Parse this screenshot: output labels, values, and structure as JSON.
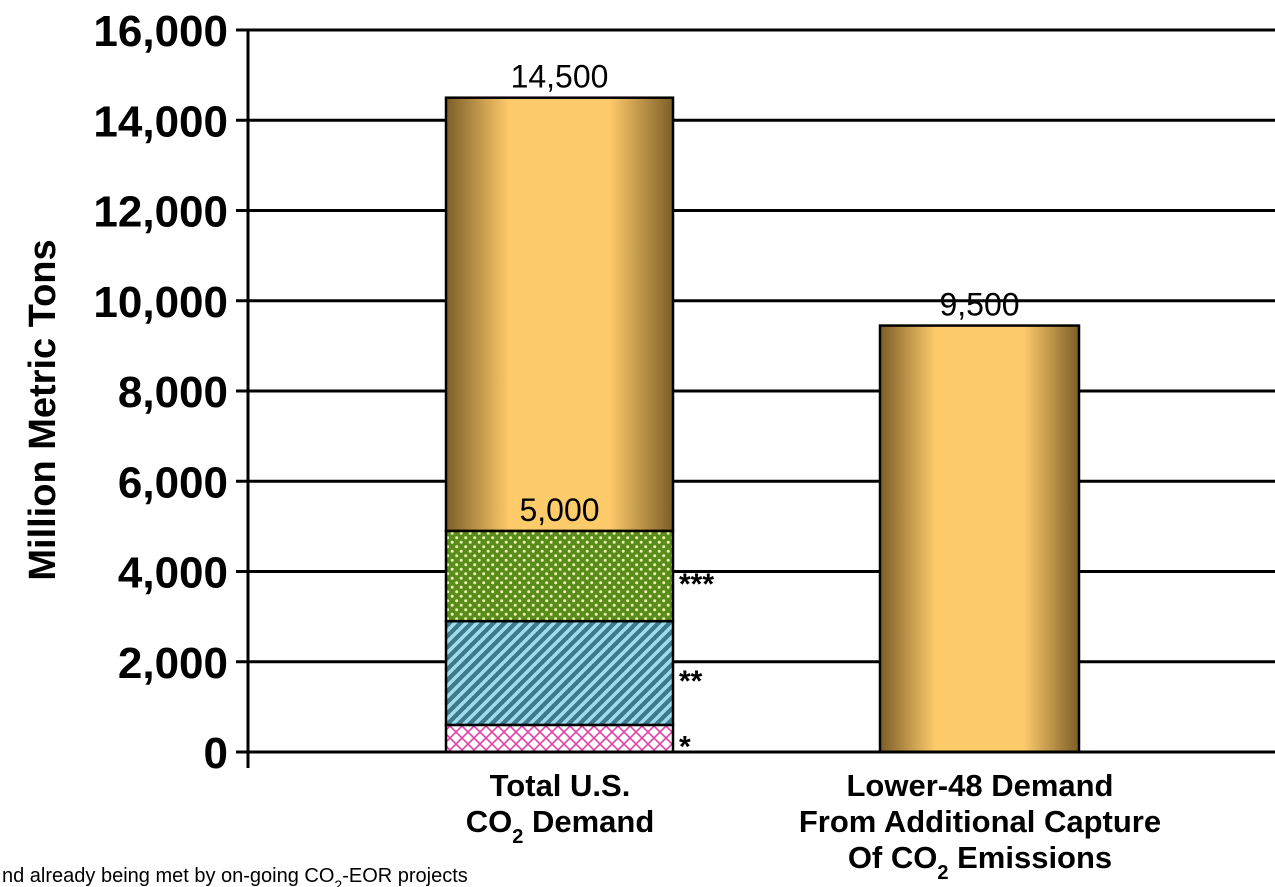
{
  "chart_data": {
    "type": "bar",
    "ylabel": "Million Metric Tons",
    "ylim": [
      0,
      16000
    ],
    "yticks": [
      "0",
      "2,000",
      "4,000",
      "6,000",
      "8,000",
      "10,000",
      "12,000",
      "14,000",
      "16,000"
    ],
    "ytick_values": [
      0,
      2000,
      4000,
      6000,
      8000,
      10000,
      12000,
      14000,
      16000
    ],
    "grid": true,
    "categories": [
      {
        "line1": "Total U.S.",
        "line2_pre": "CO",
        "line2_sub": "2",
        "line2_post": " Demand",
        "line3_pre": "",
        "line3_sub": "",
        "line3_post": ""
      },
      {
        "line1": "Lower-48 Demand",
        "line2_pre": "From Additional Capture",
        "line2_sub": "",
        "line2_post": "",
        "line3_pre": "Of CO",
        "line3_sub": "2",
        "line3_post": " Emissions"
      }
    ],
    "bars": [
      {
        "category": 0,
        "total": 14500,
        "total_label": "14,500",
        "segments": [
          {
            "value": 600,
            "pattern": "crosshatch",
            "marker": "*"
          },
          {
            "value": 2300,
            "pattern": "diagonal",
            "marker": "**"
          },
          {
            "value": 2000,
            "pattern": "dots",
            "marker": "***"
          },
          {
            "value": 9600,
            "pattern": "gold",
            "marker": ""
          }
        ],
        "mid_label": "5,000",
        "mid_value": 4900
      },
      {
        "category": 1,
        "total": 9450,
        "total_label": "9,500",
        "segments": [
          {
            "value": 9450,
            "pattern": "gold",
            "marker": ""
          }
        ]
      }
    ],
    "footnote_pre": "nd already being met by on-going CO",
    "footnote_sub": "2",
    "footnote_post": "-EOR projects",
    "colors": {
      "gold_light": "#fecb6b",
      "gold_dark": "#7c5e28",
      "crosshatch": "#e040a8",
      "diagonal_bg": "#3f7a8c",
      "diagonal_fg": "#9fdcf0",
      "dots_bg": "#5a8c1c",
      "dots_fg": "#e8f5b0"
    }
  }
}
